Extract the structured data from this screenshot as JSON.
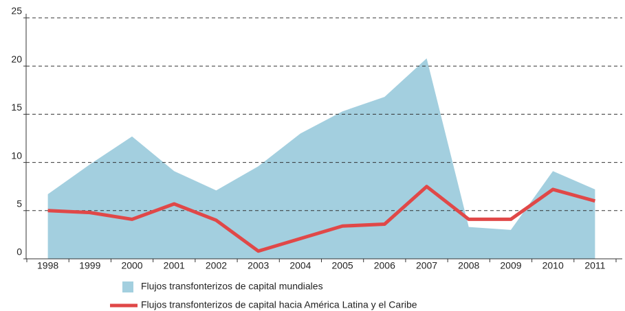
{
  "chart_data": {
    "type": "line",
    "categories": [
      "1998",
      "1999",
      "2000",
      "2001",
      "2002",
      "2003",
      "2004",
      "2005",
      "2006",
      "2007",
      "2008",
      "2009",
      "2010",
      "2011"
    ],
    "series": [
      {
        "name": "Flujos transfonterizos de capital mundiales",
        "type": "area",
        "color": "#a3cfdf",
        "values": [
          6.7,
          9.8,
          12.7,
          9.1,
          7.1,
          9.6,
          13.0,
          15.3,
          16.8,
          20.8,
          3.3,
          3.0,
          9.1,
          7.2
        ]
      },
      {
        "name": "Flujos transfonterizos de capital hacia América Latina y el Caribe",
        "type": "line",
        "color": "#e04848",
        "values": [
          5.0,
          4.8,
          4.1,
          5.7,
          4.0,
          0.8,
          2.1,
          3.4,
          3.6,
          7.5,
          4.1,
          4.1,
          7.2,
          6.0
        ]
      }
    ],
    "ylim": [
      0,
      25
    ],
    "yticks": [
      0,
      5,
      10,
      15,
      20,
      25
    ],
    "grid": true,
    "legend": "bottom"
  }
}
